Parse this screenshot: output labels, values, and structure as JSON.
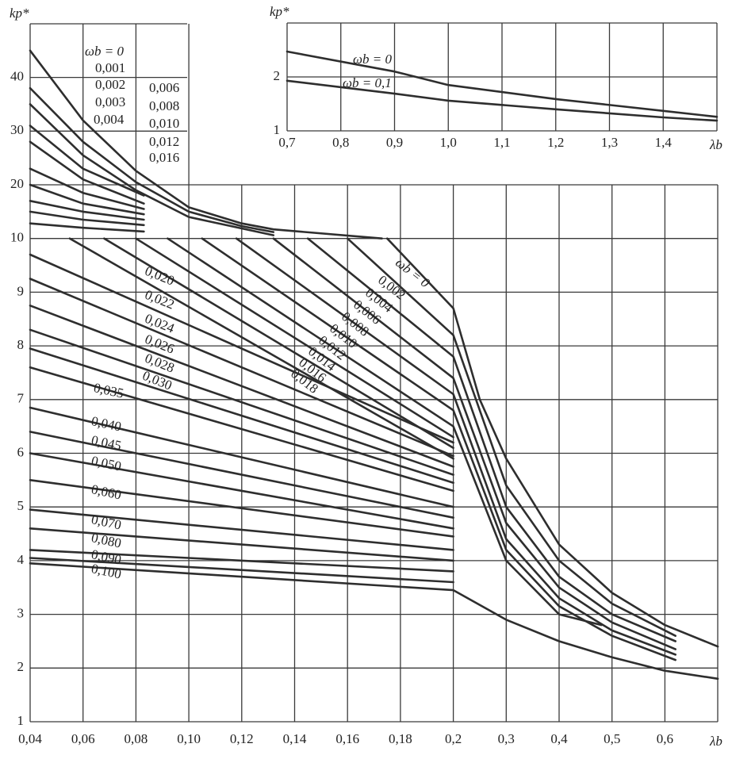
{
  "chart_data": [
    {
      "type": "line",
      "x_label": "λb",
      "y_label": "kp*",
      "color": "#2e2e2e",
      "grid": true,
      "xlim": [
        0.04,
        0.7
      ],
      "ylim": [
        1,
        50
      ],
      "xticks": [
        {
          "value": 0.04,
          "label": "0,04"
        },
        {
          "value": 0.06,
          "label": "0,06"
        },
        {
          "value": 0.08,
          "label": "0,08"
        },
        {
          "value": 0.1,
          "label": "0,10"
        },
        {
          "value": 0.12,
          "label": "0,12"
        },
        {
          "value": 0.14,
          "label": "0,14"
        },
        {
          "value": 0.16,
          "label": "0,16"
        },
        {
          "value": 0.18,
          "label": "0,18"
        },
        {
          "value": 0.2,
          "label": "0,2"
        },
        {
          "value": 0.3,
          "label": "0,3"
        },
        {
          "value": 0.4,
          "label": "0,4"
        },
        {
          "value": 0.5,
          "label": "0,5"
        },
        {
          "value": 0.6,
          "label": "0,6"
        }
      ],
      "yticks": [
        1,
        2,
        3,
        4,
        5,
        6,
        7,
        8,
        9,
        10,
        20,
        30,
        40
      ],
      "series": [
        {
          "name": "ωb = 0",
          "x": [
            0.04,
            0.06,
            0.08,
            0.1,
            0.12,
            0.132,
            0.173
          ],
          "values": [
            45,
            32,
            22.6,
            15.8,
            12.8,
            11.7,
            10
          ]
        },
        {
          "name": "0,001",
          "x": [
            0.04,
            0.06,
            0.08,
            0.1,
            0.12,
            0.132
          ],
          "values": [
            38,
            28,
            20.5,
            15,
            12.3,
            11.2
          ]
        },
        {
          "name": "0,002",
          "x": [
            0.04,
            0.06,
            0.08,
            0.1,
            0.132
          ],
          "values": [
            35,
            25.5,
            19,
            14,
            10.6
          ]
        },
        {
          "name": "0,003",
          "x": [
            0.04,
            0.06,
            0.083
          ],
          "values": [
            31,
            23,
            18
          ]
        },
        {
          "name": "0,004",
          "x": [
            0.04,
            0.06,
            0.083
          ],
          "values": [
            28,
            21,
            16.5
          ]
        },
        {
          "name": "0,006",
          "x": [
            0.04,
            0.06,
            0.083
          ],
          "values": [
            23,
            18.5,
            15.5
          ]
        },
        {
          "name": "0,008",
          "x": [
            0.04,
            0.06,
            0.083
          ],
          "values": [
            20,
            16.5,
            14.5
          ]
        },
        {
          "name": "0,010",
          "x": [
            0.04,
            0.06,
            0.083
          ],
          "values": [
            17,
            15,
            13.5
          ]
        },
        {
          "name": "0,012",
          "x": [
            0.04,
            0.06,
            0.083
          ],
          "values": [
            15,
            13.5,
            12.5
          ]
        },
        {
          "name": "0,016",
          "x": [
            0.04,
            0.06,
            0.083
          ],
          "values": [
            12.8,
            12,
            11.3
          ]
        },
        {
          "name": "ωb = 0",
          "x": [
            0.175,
            0.2,
            0.25,
            0.3,
            0.4,
            0.5,
            0.6,
            0.7
          ],
          "values": [
            10,
            8.7,
            7,
            5.9,
            4.3,
            3.4,
            2.8,
            2.4
          ]
        },
        {
          "name": "0,002",
          "x": [
            0.16,
            0.2,
            0.3,
            0.4,
            0.5,
            0.62
          ],
          "values": [
            10,
            8.2,
            5.4,
            4,
            3.2,
            2.6
          ]
        },
        {
          "name": "0,004",
          "x": [
            0.145,
            0.2,
            0.3,
            0.4,
            0.5,
            0.62
          ],
          "values": [
            10,
            7.8,
            5,
            3.7,
            3,
            2.5
          ]
        },
        {
          "name": "0,006",
          "x": [
            0.132,
            0.2,
            0.3,
            0.4,
            0.5,
            0.62
          ],
          "values": [
            10,
            7.4,
            4.7,
            3.5,
            2.85,
            2.35
          ]
        },
        {
          "name": "0,008",
          "x": [
            0.118,
            0.2,
            0.3,
            0.4,
            0.5,
            0.62
          ],
          "values": [
            10,
            7.1,
            4.4,
            3.3,
            2.7,
            2.25
          ]
        },
        {
          "name": "0,010",
          "x": [
            0.105,
            0.2,
            0.3,
            0.4,
            0.5,
            0.62
          ],
          "values": [
            10,
            6.8,
            4.2,
            3.15,
            2.6,
            2.15
          ]
        },
        {
          "name": "0,012",
          "x": [
            0.092,
            0.2,
            0.3,
            0.4,
            0.48
          ],
          "values": [
            10,
            6.5,
            4,
            3,
            2.8
          ]
        },
        {
          "name": "0,014",
          "x": [
            0.08,
            0.2
          ],
          "values": [
            10,
            6.3
          ]
        },
        {
          "name": "0,016",
          "x": [
            0.068,
            0.2
          ],
          "values": [
            10,
            6.1
          ]
        },
        {
          "name": "0,018",
          "x": [
            0.055,
            0.2
          ],
          "values": [
            10,
            5.9
          ]
        },
        {
          "name": "0,020",
          "x": [
            0.04,
            0.2
          ],
          "values": [
            9.7,
            6.2
          ]
        },
        {
          "name": "0,022",
          "x": [
            0.04,
            0.2
          ],
          "values": [
            9.25,
            5.95
          ]
        },
        {
          "name": "0,024",
          "x": [
            0.04,
            0.2
          ],
          "values": [
            8.75,
            5.75
          ]
        },
        {
          "name": "0,026",
          "x": [
            0.04,
            0.2
          ],
          "values": [
            8.3,
            5.6
          ]
        },
        {
          "name": "0,028",
          "x": [
            0.04,
            0.2
          ],
          "values": [
            7.95,
            5.45
          ]
        },
        {
          "name": "0,030",
          "x": [
            0.04,
            0.2
          ],
          "values": [
            7.6,
            5.3
          ]
        },
        {
          "name": "0,035",
          "x": [
            0.04,
            0.2
          ],
          "values": [
            6.85,
            5
          ]
        },
        {
          "name": "0,040",
          "x": [
            0.04,
            0.2
          ],
          "values": [
            6.4,
            4.8
          ]
        },
        {
          "name": "0,045",
          "x": [
            0.04,
            0.2
          ],
          "values": [
            6,
            4.6
          ]
        },
        {
          "name": "0,050",
          "x": [
            0.04,
            0.2
          ],
          "values": [
            5.5,
            4.45
          ]
        },
        {
          "name": "0,060",
          "x": [
            0.04,
            0.2
          ],
          "values": [
            4.95,
            4.2
          ]
        },
        {
          "name": "0,070",
          "x": [
            0.04,
            0.2
          ],
          "values": [
            4.6,
            4
          ]
        },
        {
          "name": "0,080",
          "x": [
            0.04,
            0.2
          ],
          "values": [
            4.2,
            3.8
          ]
        },
        {
          "name": "0,090",
          "x": [
            0.04,
            0.2
          ],
          "values": [
            4.05,
            3.6
          ]
        },
        {
          "name": "0,100",
          "x": [
            0.04,
            0.2,
            0.3,
            0.4,
            0.5,
            0.6,
            0.7
          ],
          "values": [
            3.95,
            3.45,
            2.9,
            2.5,
            2.2,
            1.95,
            1.8
          ]
        }
      ]
    },
    {
      "type": "line",
      "x_label": "λb",
      "y_label": "kp*",
      "color": "#2e2e2e",
      "grid": true,
      "xlim": [
        0.7,
        1.5
      ],
      "ylim": [
        1,
        3
      ],
      "xticks": [
        {
          "value": 0.7,
          "label": "0,7"
        },
        {
          "value": 0.8,
          "label": "0,8"
        },
        {
          "value": 0.9,
          "label": "0,9"
        },
        {
          "value": 1.0,
          "label": "1,0"
        },
        {
          "value": 1.1,
          "label": "1,1"
        },
        {
          "value": 1.2,
          "label": "1,2"
        },
        {
          "value": 1.3,
          "label": "1,3"
        },
        {
          "value": 1.4,
          "label": "1,4"
        }
      ],
      "yticks": [
        1,
        2
      ],
      "series": [
        {
          "name": "ωb = 0",
          "x": [
            0.7,
            0.9,
            1.0,
            1.2,
            1.4,
            1.5
          ],
          "values": [
            2.47,
            2.1,
            1.85,
            1.59,
            1.37,
            1.26
          ]
        },
        {
          "name": "ωb = 0,1",
          "x": [
            0.7,
            0.9,
            1.0,
            1.2,
            1.4,
            1.5
          ],
          "values": [
            1.93,
            1.69,
            1.56,
            1.4,
            1.25,
            1.19
          ]
        }
      ]
    }
  ]
}
